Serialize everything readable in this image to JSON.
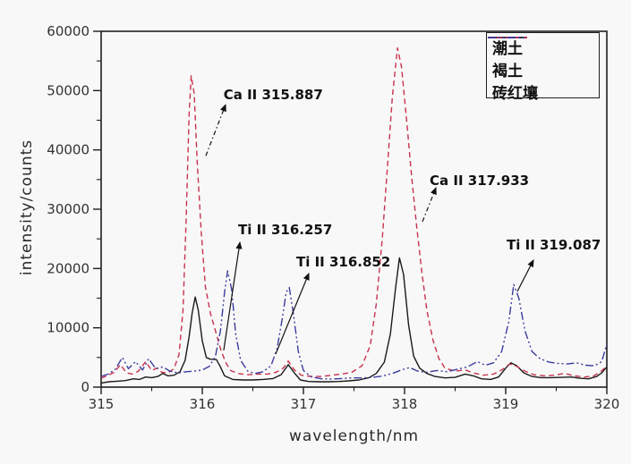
{
  "chart_data": {
    "type": "line",
    "title": "",
    "xlabel": "wavelength/nm",
    "ylabel": "intensity/counts",
    "xlim": [
      315,
      320
    ],
    "ylim": [
      0,
      60000
    ],
    "x_major_ticks": [
      315,
      316,
      317,
      318,
      319,
      320
    ],
    "x_minor_ticks": [
      315.5,
      316.5,
      317.5,
      318.5,
      319.5
    ],
    "y_major_ticks": [
      0,
      10000,
      20000,
      30000,
      40000,
      50000,
      60000
    ],
    "y_minor_ticks": [
      5000,
      15000,
      25000,
      35000,
      45000,
      55000
    ],
    "grid": false,
    "legend_position": "top-right",
    "frame_color": "#1f1f1f",
    "text_color": "#111111",
    "series": [
      {
        "name": "潮土",
        "color": "#1a1a1a",
        "dash": "solid",
        "points": [
          [
            315.0,
            700
          ],
          [
            315.08,
            900
          ],
          [
            315.16,
            1000
          ],
          [
            315.24,
            1100
          ],
          [
            315.32,
            1400
          ],
          [
            315.38,
            1300
          ],
          [
            315.44,
            1700
          ],
          [
            315.5,
            1600
          ],
          [
            315.56,
            1800
          ],
          [
            315.61,
            2300
          ],
          [
            315.66,
            1900
          ],
          [
            315.72,
            2000
          ],
          [
            315.78,
            2600
          ],
          [
            315.83,
            4500
          ],
          [
            315.87,
            8500
          ],
          [
            315.9,
            12500
          ],
          [
            315.93,
            15200
          ],
          [
            315.96,
            13000
          ],
          [
            316.0,
            7800
          ],
          [
            316.04,
            5000
          ],
          [
            316.08,
            4700
          ],
          [
            316.14,
            4650
          ],
          [
            316.18,
            3400
          ],
          [
            316.22,
            1900
          ],
          [
            316.3,
            1300
          ],
          [
            316.4,
            1200
          ],
          [
            316.5,
            1200
          ],
          [
            316.6,
            1300
          ],
          [
            316.7,
            1450
          ],
          [
            316.78,
            2100
          ],
          [
            316.85,
            3800
          ],
          [
            316.91,
            2400
          ],
          [
            316.97,
            1200
          ],
          [
            317.05,
            950
          ],
          [
            317.15,
            900
          ],
          [
            317.25,
            900
          ],
          [
            317.35,
            950
          ],
          [
            317.45,
            1050
          ],
          [
            317.55,
            1200
          ],
          [
            317.65,
            1600
          ],
          [
            317.72,
            2300
          ],
          [
            317.8,
            4200
          ],
          [
            317.86,
            9000
          ],
          [
            317.91,
            16500
          ],
          [
            317.95,
            21800
          ],
          [
            317.99,
            19000
          ],
          [
            318.04,
            10500
          ],
          [
            318.09,
            5200
          ],
          [
            318.15,
            3200
          ],
          [
            318.22,
            2300
          ],
          [
            318.3,
            1800
          ],
          [
            318.4,
            1550
          ],
          [
            318.5,
            1650
          ],
          [
            318.6,
            2200
          ],
          [
            318.68,
            1900
          ],
          [
            318.76,
            1400
          ],
          [
            318.85,
            1300
          ],
          [
            318.93,
            1700
          ],
          [
            319.0,
            3200
          ],
          [
            319.05,
            4100
          ],
          [
            319.11,
            3600
          ],
          [
            319.18,
            2400
          ],
          [
            319.26,
            1800
          ],
          [
            319.35,
            1600
          ],
          [
            319.45,
            1600
          ],
          [
            319.55,
            1650
          ],
          [
            319.65,
            1700
          ],
          [
            319.73,
            1500
          ],
          [
            319.82,
            1400
          ],
          [
            319.9,
            1800
          ],
          [
            319.95,
            2400
          ],
          [
            320.0,
            3400
          ]
        ]
      },
      {
        "name": "褐土",
        "color": "#c8314e",
        "dash": "dashed",
        "points": [
          [
            315.0,
            1500
          ],
          [
            315.07,
            2000
          ],
          [
            315.13,
            2500
          ],
          [
            315.19,
            3800
          ],
          [
            315.25,
            2400
          ],
          [
            315.31,
            2200
          ],
          [
            315.37,
            2700
          ],
          [
            315.44,
            4300
          ],
          [
            315.5,
            2800
          ],
          [
            315.55,
            3200
          ],
          [
            315.6,
            2500
          ],
          [
            315.66,
            2400
          ],
          [
            315.72,
            3100
          ],
          [
            315.77,
            5500
          ],
          [
            315.81,
            13000
          ],
          [
            315.84,
            28000
          ],
          [
            315.87,
            46000
          ],
          [
            315.89,
            52500
          ],
          [
            315.92,
            49500
          ],
          [
            315.95,
            38000
          ],
          [
            315.99,
            26000
          ],
          [
            316.03,
            17000
          ],
          [
            316.08,
            12500
          ],
          [
            316.13,
            9500
          ],
          [
            316.18,
            6500
          ],
          [
            316.23,
            4200
          ],
          [
            316.28,
            2800
          ],
          [
            316.35,
            2300
          ],
          [
            316.45,
            2100
          ],
          [
            316.55,
            2200
          ],
          [
            316.65,
            2200
          ],
          [
            316.73,
            2500
          ],
          [
            316.8,
            3200
          ],
          [
            316.85,
            4400
          ],
          [
            316.91,
            2900
          ],
          [
            316.98,
            2000
          ],
          [
            317.08,
            1800
          ],
          [
            317.18,
            1800
          ],
          [
            317.28,
            2000
          ],
          [
            317.38,
            2200
          ],
          [
            317.48,
            2500
          ],
          [
            317.58,
            3600
          ],
          [
            317.66,
            7000
          ],
          [
            317.72,
            14000
          ],
          [
            317.78,
            25000
          ],
          [
            317.83,
            37000
          ],
          [
            317.88,
            49000
          ],
          [
            317.93,
            57200
          ],
          [
            317.97,
            54000
          ],
          [
            318.02,
            45000
          ],
          [
            318.07,
            35500
          ],
          [
            318.12,
            27000
          ],
          [
            318.17,
            19500
          ],
          [
            318.22,
            13000
          ],
          [
            318.28,
            8000
          ],
          [
            318.34,
            4800
          ],
          [
            318.4,
            3200
          ],
          [
            318.5,
            2700
          ],
          [
            318.6,
            2900
          ],
          [
            318.68,
            2400
          ],
          [
            318.78,
            2000
          ],
          [
            318.88,
            2200
          ],
          [
            318.96,
            2900
          ],
          [
            319.04,
            3900
          ],
          [
            319.11,
            3500
          ],
          [
            319.19,
            2700
          ],
          [
            319.28,
            2100
          ],
          [
            319.38,
            1900
          ],
          [
            319.48,
            2000
          ],
          [
            319.58,
            2300
          ],
          [
            319.68,
            1900
          ],
          [
            319.78,
            1700
          ],
          [
            319.87,
            1900
          ],
          [
            319.94,
            2600
          ],
          [
            320.0,
            3600
          ]
        ]
      },
      {
        "name": "砖红壤",
        "color": "#3b3b9e",
        "dash": "dash-dot-dot",
        "points": [
          [
            315.0,
            1800
          ],
          [
            315.07,
            2200
          ],
          [
            315.14,
            3000
          ],
          [
            315.21,
            5000
          ],
          [
            315.27,
            3100
          ],
          [
            315.34,
            4300
          ],
          [
            315.41,
            2900
          ],
          [
            315.47,
            4800
          ],
          [
            315.54,
            3100
          ],
          [
            315.61,
            3400
          ],
          [
            315.68,
            2700
          ],
          [
            315.76,
            2400
          ],
          [
            315.84,
            2600
          ],
          [
            315.92,
            2700
          ],
          [
            316.0,
            2900
          ],
          [
            316.07,
            3500
          ],
          [
            316.13,
            5200
          ],
          [
            316.18,
            9500
          ],
          [
            316.22,
            16000
          ],
          [
            316.25,
            19600
          ],
          [
            316.29,
            16500
          ],
          [
            316.33,
            9000
          ],
          [
            316.38,
            4500
          ],
          [
            316.45,
            2700
          ],
          [
            316.52,
            2300
          ],
          [
            316.6,
            2600
          ],
          [
            316.68,
            3600
          ],
          [
            316.74,
            6500
          ],
          [
            316.79,
            11500
          ],
          [
            316.83,
            16000
          ],
          [
            316.86,
            16800
          ],
          [
            316.9,
            12500
          ],
          [
            316.95,
            6000
          ],
          [
            317.0,
            2800
          ],
          [
            317.08,
            1700
          ],
          [
            317.18,
            1400
          ],
          [
            317.28,
            1350
          ],
          [
            317.38,
            1450
          ],
          [
            317.48,
            1550
          ],
          [
            317.58,
            1550
          ],
          [
            317.68,
            1650
          ],
          [
            317.78,
            1850
          ],
          [
            317.88,
            2300
          ],
          [
            317.97,
            2900
          ],
          [
            318.05,
            3300
          ],
          [
            318.13,
            2700
          ],
          [
            318.22,
            2500
          ],
          [
            318.32,
            2800
          ],
          [
            318.42,
            2600
          ],
          [
            318.52,
            3000
          ],
          [
            318.62,
            3400
          ],
          [
            318.72,
            4300
          ],
          [
            318.8,
            3700
          ],
          [
            318.88,
            4100
          ],
          [
            318.96,
            6000
          ],
          [
            319.03,
            11000
          ],
          [
            319.08,
            17300
          ],
          [
            319.13,
            15000
          ],
          [
            319.19,
            9500
          ],
          [
            319.26,
            6000
          ],
          [
            319.34,
            4800
          ],
          [
            319.43,
            4200
          ],
          [
            319.52,
            4000
          ],
          [
            319.61,
            3900
          ],
          [
            319.7,
            4100
          ],
          [
            319.79,
            3700
          ],
          [
            319.88,
            3600
          ],
          [
            319.95,
            4300
          ],
          [
            320.0,
            7300
          ]
        ]
      }
    ],
    "annotations": [
      {
        "label": "Ca II 315.887",
        "text_x": 316.21,
        "text_y": 49300,
        "arrow_from_x": 316.035,
        "arrow_from_y": 39000,
        "arrow_to_x": 316.23,
        "arrow_to_y": 47600,
        "arrow_style": "dash-dot"
      },
      {
        "label": "Ti II 316.257",
        "text_x": 316.354,
        "text_y": 26500,
        "arrow_from_x": 316.212,
        "arrow_from_y": 6200,
        "arrow_to_x": 316.372,
        "arrow_to_y": 24400,
        "arrow_style": "solid"
      },
      {
        "label": "Ti II 316.852",
        "text_x": 316.929,
        "text_y": 21100,
        "arrow_from_x": 316.726,
        "arrow_from_y": 5600,
        "arrow_to_x": 317.053,
        "arrow_to_y": 19150,
        "arrow_style": "solid"
      },
      {
        "label": "Ca II 317.933",
        "text_x": 318.248,
        "text_y": 34800,
        "arrow_from_x": 318.177,
        "arrow_from_y": 27900,
        "arrow_to_x": 318.31,
        "arrow_to_y": 33600,
        "arrow_style": "dash-dot"
      },
      {
        "label": "Ti II 319.087",
        "text_x": 319.009,
        "text_y": 23970,
        "arrow_from_x": 319.115,
        "arrow_from_y": 16130,
        "arrow_to_x": 319.274,
        "arrow_to_y": 21400,
        "arrow_style": "solid"
      }
    ],
    "legend": {
      "items": [
        {
          "label": "潮土",
          "color": "#1a1a1a",
          "dash": "solid"
        },
        {
          "label": "褐土",
          "color": "#c8314e",
          "dash": "dashed"
        },
        {
          "label": "砖红壤",
          "color": "#3b3b9e",
          "dash": "dash-dot-dot"
        }
      ]
    }
  }
}
